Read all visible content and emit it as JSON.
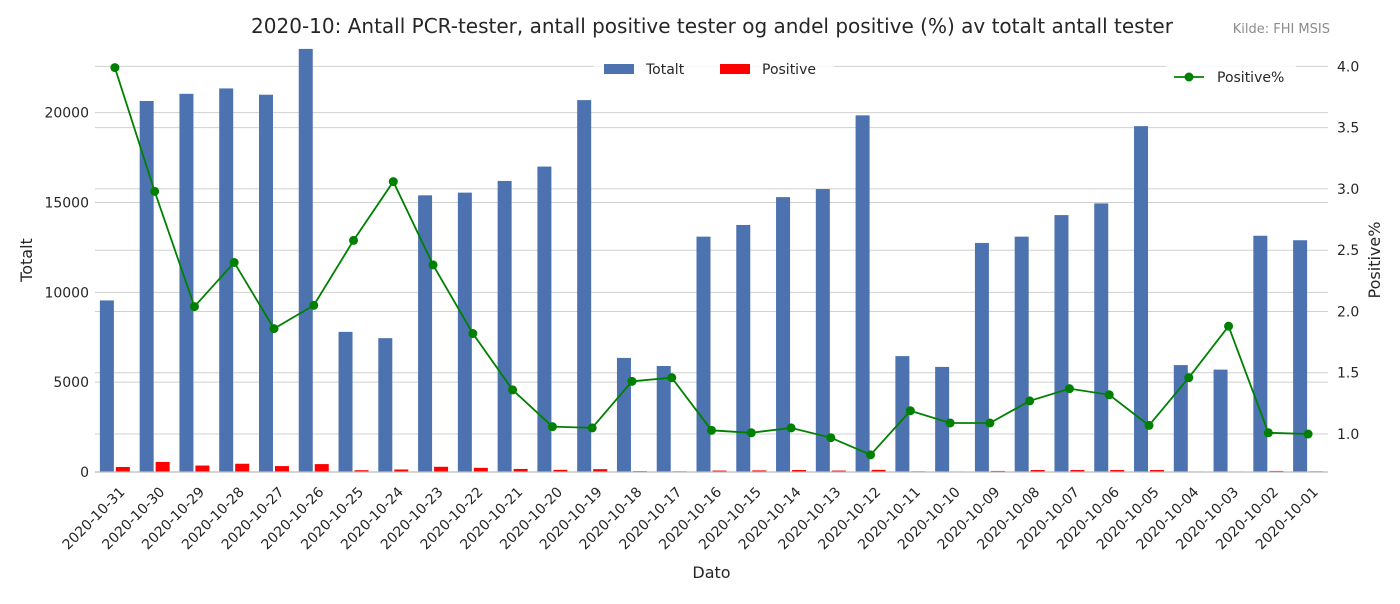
{
  "chart_data": {
    "type": "bar",
    "title": "2020-10: Antall PCR-tester, antall positive tester og andel positive (%) av totalt antall tester",
    "source": "Kilde: FHI MSIS",
    "xlabel": "Dato",
    "ylabel_left": "Totalt",
    "ylabel_right": "Positive%",
    "ylim_left": [
      0,
      23600
    ],
    "ylim_right": [
      0.69,
      4.15
    ],
    "yticks_left": [
      0,
      5000,
      10000,
      15000,
      20000
    ],
    "yticks_right": [
      1.0,
      1.5,
      2.0,
      2.5,
      3.0,
      3.5,
      4.0
    ],
    "yticks_right_labels": [
      "1.0",
      "1.5",
      "2.0",
      "2.5",
      "3.0",
      "3.5",
      "4.0"
    ],
    "grid": true,
    "legend_left_placement": "top-center",
    "legend_right_placement": "top-right",
    "categories": [
      "2020-10-31",
      "2020-10-30",
      "2020-10-29",
      "2020-10-28",
      "2020-10-27",
      "2020-10-26",
      "2020-10-25",
      "2020-10-24",
      "2020-10-23",
      "2020-10-22",
      "2020-10-21",
      "2020-10-20",
      "2020-10-19",
      "2020-10-18",
      "2020-10-17",
      "2020-10-16",
      "2020-10-15",
      "2020-10-14",
      "2020-10-13",
      "2020-10-12",
      "2020-10-11",
      "2020-10-10",
      "2020-10-09",
      "2020-10-08",
      "2020-10-07",
      "2020-10-06",
      "2020-10-05",
      "2020-10-04",
      "2020-10-03",
      "2020-10-02",
      "2020-10-01"
    ],
    "series": [
      {
        "name": "Totalt",
        "axis": "left",
        "kind": "bar",
        "color": "#4c72b0",
        "values": [
          9550,
          20650,
          21050,
          21350,
          21000,
          23550,
          7800,
          7450,
          15400,
          15550,
          16200,
          17000,
          20700,
          6350,
          5900,
          13100,
          13750,
          15300,
          15750,
          19850,
          6450,
          5850,
          12750,
          13100,
          14300,
          14950,
          19250,
          5950,
          5700,
          13150,
          12900
        ]
      },
      {
        "name": "Positive",
        "axis": "left",
        "kind": "bar",
        "color": "#ff0000",
        "values": [
          280,
          560,
          360,
          460,
          330,
          440,
          100,
          140,
          290,
          230,
          170,
          120,
          160,
          50,
          40,
          80,
          90,
          110,
          80,
          120,
          40,
          30,
          60,
          110,
          110,
          110,
          110,
          30,
          30,
          60,
          40
        ]
      },
      {
        "name": "Positive%",
        "axis": "right",
        "kind": "line",
        "color": "#008000",
        "values": [
          3.99,
          2.98,
          2.04,
          2.4,
          1.86,
          2.05,
          2.58,
          3.06,
          2.38,
          1.82,
          1.36,
          1.06,
          1.05,
          1.43,
          1.46,
          1.03,
          1.01,
          1.05,
          0.97,
          0.83,
          1.19,
          1.09,
          1.09,
          1.27,
          1.37,
          1.32,
          1.07,
          1.46,
          1.88,
          1.01,
          1.0
        ]
      }
    ]
  }
}
